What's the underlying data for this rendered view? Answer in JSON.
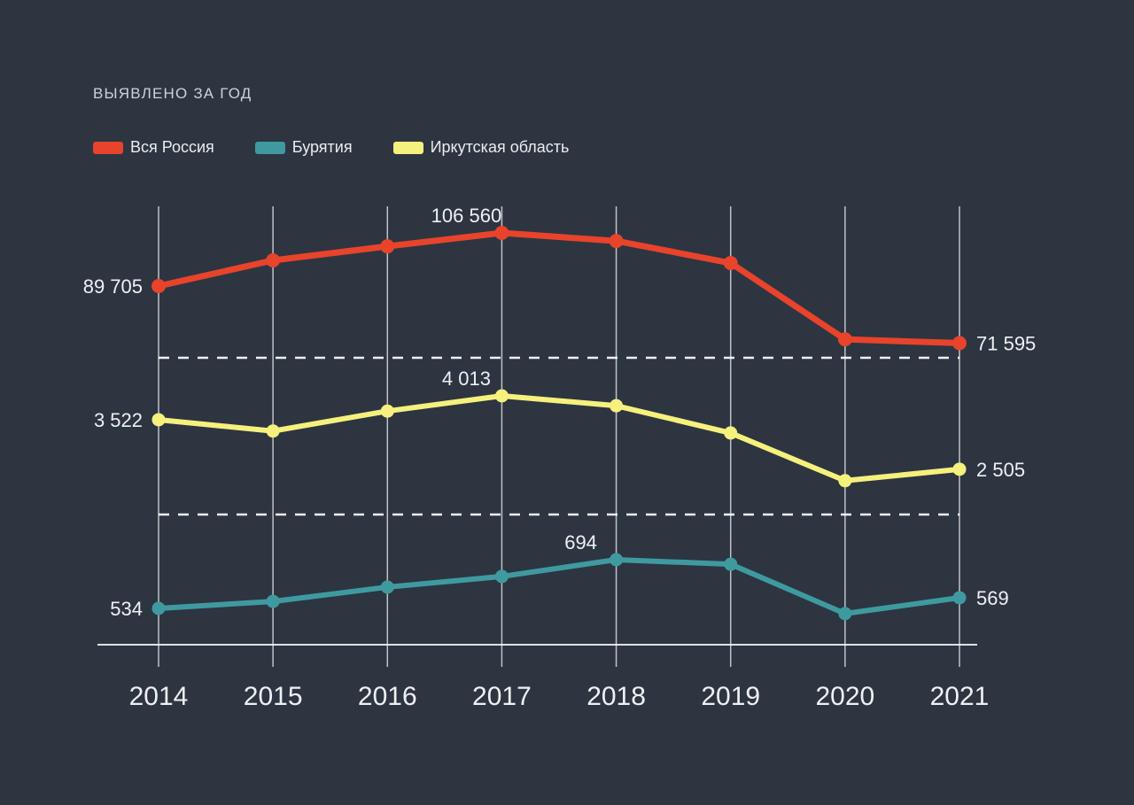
{
  "title": "ВЫЯВЛЕНО ЗА ГОД",
  "colors": {
    "background": "#2d3541",
    "grid": "#c7cdd3",
    "text": "#eef1f3",
    "series_russia": "#e8432b",
    "series_buryatia": "#3f9aa0",
    "series_irkutsk": "#f6f07d"
  },
  "legend": {
    "items": [
      {
        "label": "Вся Россия",
        "color": "#e8432b"
      },
      {
        "label": "Бурятия",
        "color": "#3f9aa0"
      },
      {
        "label": "Иркутская область",
        "color": "#f6f07d"
      }
    ]
  },
  "chart_data": {
    "type": "line",
    "title": "ВЫЯВЛЕНО ЗА ГОД",
    "x": [
      2014,
      2015,
      2016,
      2017,
      2018,
      2019,
      2020,
      2021
    ],
    "series": [
      {
        "name": "Вся Россия",
        "color": "#e8432b",
        "values": [
          89705,
          97850,
          102300,
          106560,
          104000,
          97000,
          72800,
          71595
        ],
        "point_labels": [
          {
            "x": 2014,
            "text": "89 705",
            "pos": "left"
          },
          {
            "x": 2017,
            "text": "106 560",
            "pos": "top"
          },
          {
            "x": 2021,
            "text": "71 595",
            "pos": "right"
          }
        ]
      },
      {
        "name": "Бурятия",
        "color": "#3f9aa0",
        "values": [
          534,
          557,
          604,
          639,
          694,
          679,
          517,
          569
        ],
        "point_labels": [
          {
            "x": 2014,
            "text": "534",
            "pos": "left"
          },
          {
            "x": 2018,
            "text": "694",
            "pos": "top"
          },
          {
            "x": 2021,
            "text": "569",
            "pos": "right"
          }
        ]
      },
      {
        "name": "Иркутская область",
        "color": "#f6f07d",
        "values": [
          3522,
          3290,
          3700,
          4013,
          3810,
          3250,
          2270,
          2505
        ],
        "point_labels": [
          {
            "x": 2014,
            "text": "3 522",
            "pos": "left"
          },
          {
            "x": 2017,
            "text": "4 013",
            "pos": "top"
          },
          {
            "x": 2021,
            "text": "2 505",
            "pos": "right"
          }
        ]
      }
    ],
    "xlabel": "",
    "ylabel": "",
    "grid": {
      "vertical_gridlines": true,
      "horizontal_dashed_separators": 2,
      "baseline": true
    },
    "legend_position": "top-left"
  }
}
